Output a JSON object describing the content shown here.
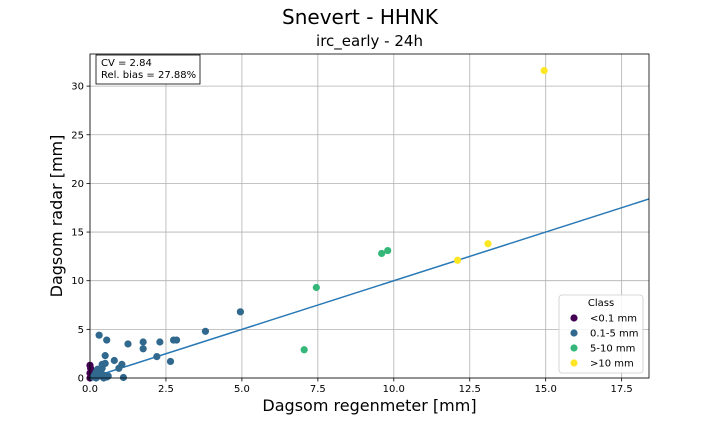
{
  "chart_data": {
    "type": "scatter",
    "title": "Snevert - HHNK",
    "subtitle": "irc_early - 24h",
    "xlabel": "Dagsom regenmeter [mm]",
    "ylabel": "Dagsom radar [mm]",
    "xlim": [
      0,
      18.4
    ],
    "ylim": [
      0,
      33.3
    ],
    "xticks": [
      "0.0",
      "2.5",
      "5.0",
      "7.5",
      "10.0",
      "12.5",
      "15.0",
      "17.5"
    ],
    "xtick_values": [
      0,
      2.5,
      5,
      7.5,
      10,
      12.5,
      15,
      17.5
    ],
    "yticks": [
      "0",
      "5",
      "10",
      "15",
      "20",
      "25",
      "30"
    ],
    "ytick_values": [
      0,
      5,
      10,
      15,
      20,
      25,
      30
    ],
    "grid": true,
    "stats": [
      "CV = 2.84",
      "Rel. bias = 27.88%"
    ],
    "fit_line": {
      "slope": 1.0,
      "color": "#2878b5"
    },
    "legend": {
      "title": "Class",
      "placement": "lower-right"
    },
    "series": [
      {
        "name": "<0.1 mm",
        "color": "#440154",
        "points": [
          [
            0.0,
            1.3
          ],
          [
            0.02,
            1.0
          ],
          [
            0.0,
            0.5
          ],
          [
            0.03,
            0.2
          ],
          [
            0.0,
            0.0
          ],
          [
            0.05,
            0.1
          ]
        ]
      },
      {
        "name": "0.1-5 mm",
        "color": "#31688e",
        "points": [
          [
            0.1,
            0.1
          ],
          [
            0.15,
            0.3
          ],
          [
            0.2,
            0.0
          ],
          [
            0.2,
            0.6
          ],
          [
            0.25,
            0.9
          ],
          [
            0.3,
            0.2
          ],
          [
            0.3,
            4.4
          ],
          [
            0.35,
            0.5
          ],
          [
            0.4,
            1.0
          ],
          [
            0.4,
            1.4
          ],
          [
            0.45,
            0.0
          ],
          [
            0.45,
            0.3
          ],
          [
            0.5,
            2.3
          ],
          [
            0.5,
            1.5
          ],
          [
            0.55,
            0.1
          ],
          [
            0.55,
            3.9
          ],
          [
            0.6,
            0.2
          ],
          [
            0.8,
            1.8
          ],
          [
            0.95,
            1.0
          ],
          [
            1.05,
            1.4
          ],
          [
            1.1,
            0.05
          ],
          [
            1.25,
            3.5
          ],
          [
            1.75,
            3.0
          ],
          [
            1.75,
            3.7
          ],
          [
            2.2,
            2.2
          ],
          [
            2.3,
            3.7
          ],
          [
            2.65,
            1.7
          ],
          [
            2.75,
            3.9
          ],
          [
            2.85,
            3.9
          ],
          [
            3.8,
            4.8
          ],
          [
            4.95,
            6.8
          ]
        ]
      },
      {
        "name": "5-10 mm",
        "color": "#35b779",
        "points": [
          [
            7.05,
            2.9
          ],
          [
            7.45,
            9.3
          ],
          [
            9.6,
            12.8
          ],
          [
            9.8,
            13.1
          ]
        ]
      },
      {
        "name": ">10 mm",
        "color": "#fde725",
        "points": [
          [
            12.1,
            12.1
          ],
          [
            13.1,
            13.8
          ],
          [
            14.95,
            31.6
          ]
        ]
      }
    ]
  }
}
